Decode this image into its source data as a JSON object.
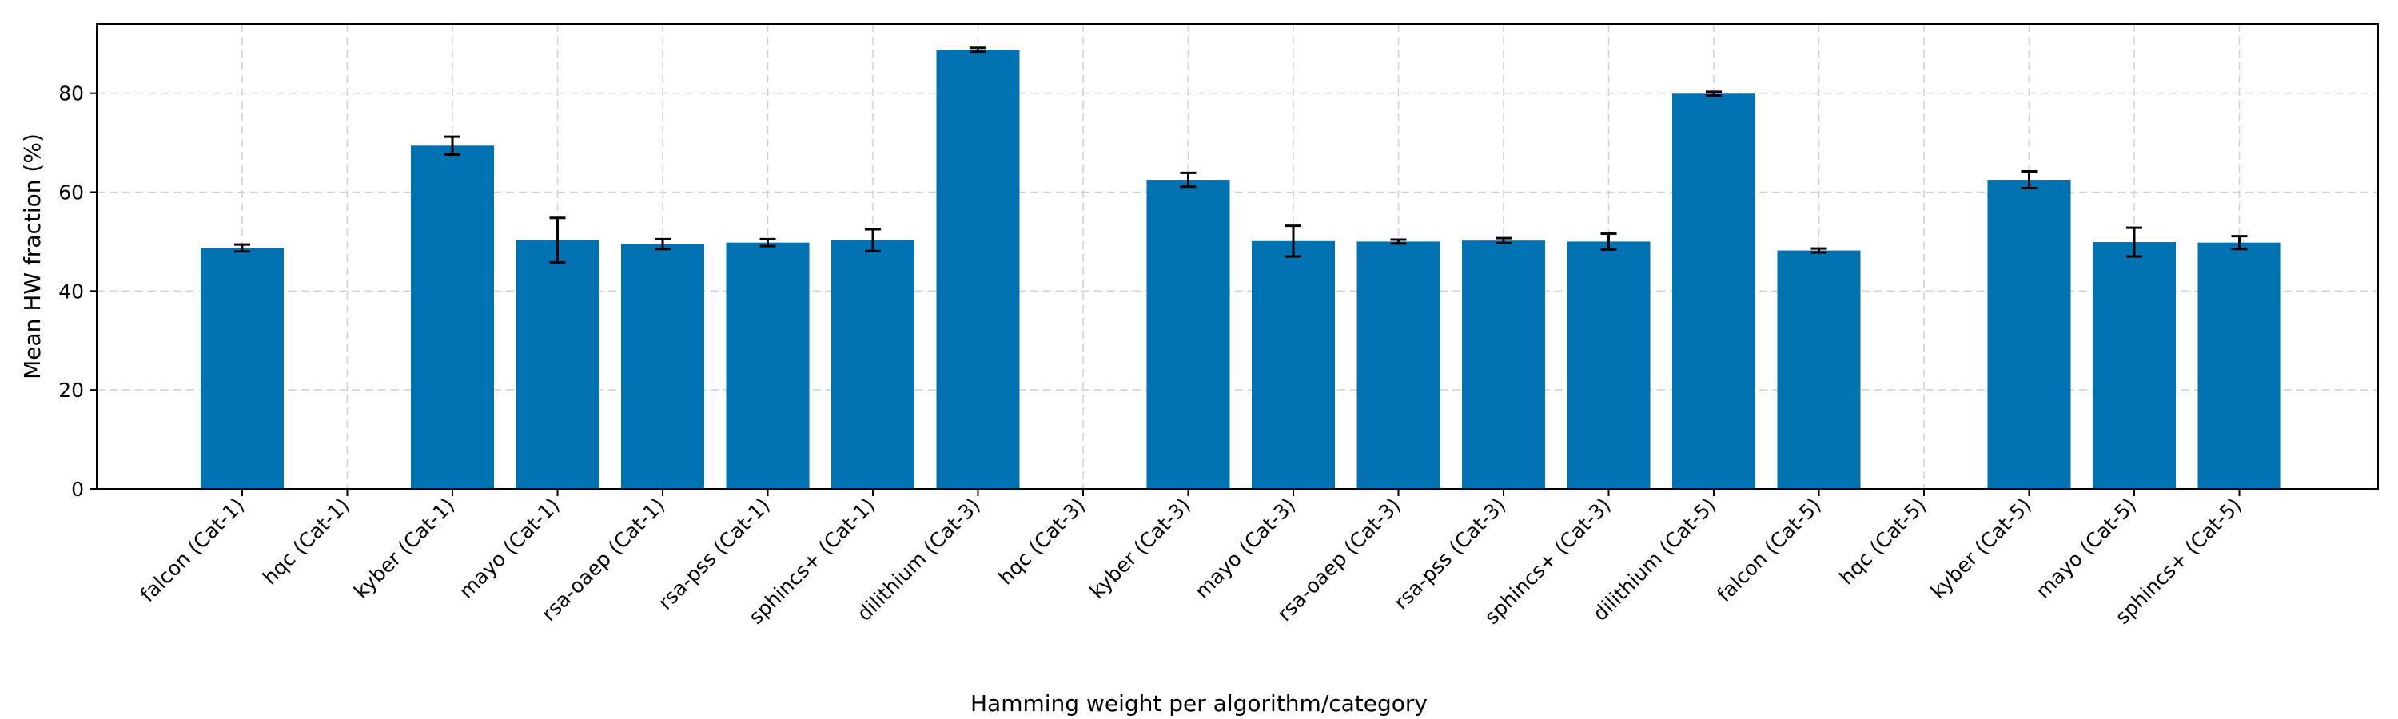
{
  "chart_data": {
    "type": "bar",
    "title": "",
    "xlabel": "Hamming weight per algorithm/category",
    "ylabel": "Mean HW fraction (%)",
    "ylim": [
      0,
      94
    ],
    "yticks": [
      0,
      20,
      40,
      60,
      80
    ],
    "grid": true,
    "bar_color": "#0072b2",
    "error_color": "#000000",
    "categories": [
      "falcon (Cat-1)",
      "hqc (Cat-1)",
      "kyber (Cat-1)",
      "mayo (Cat-1)",
      "rsa-oaep (Cat-1)",
      "rsa-pss (Cat-1)",
      "sphincs+ (Cat-1)",
      "dilithium (Cat-3)",
      "hqc (Cat-3)",
      "kyber (Cat-3)",
      "mayo (Cat-3)",
      "rsa-oaep (Cat-3)",
      "rsa-pss (Cat-3)",
      "sphincs+ (Cat-3)",
      "dilithium (Cat-5)",
      "falcon (Cat-5)",
      "hqc (Cat-5)",
      "kyber (Cat-5)",
      "mayo (Cat-5)",
      "sphincs+ (Cat-5)"
    ],
    "values": [
      48.7,
      0.1,
      69.4,
      50.3,
      49.5,
      49.8,
      50.3,
      88.8,
      0.1,
      62.5,
      50.1,
      50.0,
      50.2,
      50.0,
      79.9,
      48.2,
      0.1,
      62.5,
      49.9,
      49.8
    ],
    "errors": [
      0.7,
      0.0,
      1.8,
      4.5,
      1.0,
      0.7,
      2.2,
      0.4,
      0.0,
      1.4,
      3.1,
      0.4,
      0.5,
      1.6,
      0.4,
      0.4,
      0.0,
      1.7,
      2.9,
      1.3
    ]
  }
}
